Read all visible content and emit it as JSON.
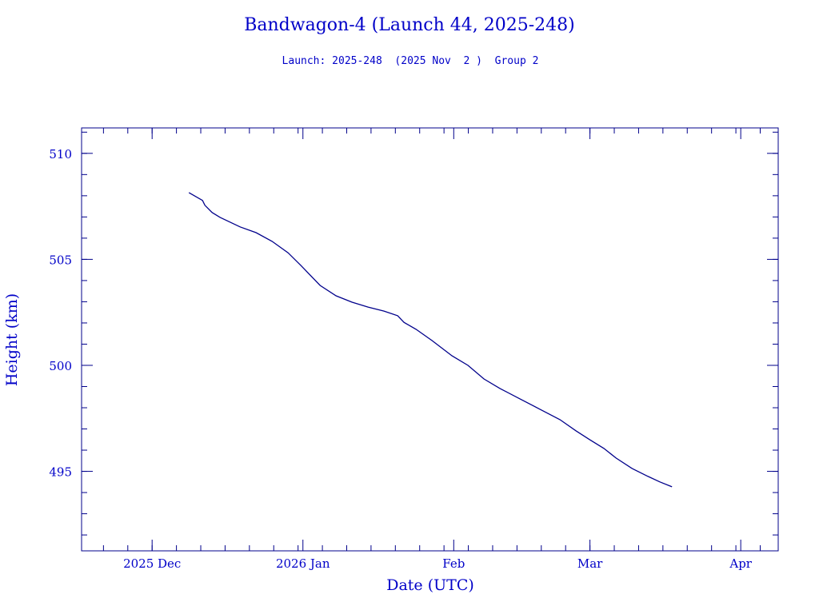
{
  "chart_data": {
    "type": "line",
    "title": "Bandwagon-4 (Launch 44, 2025-248)",
    "subtitle": "Launch: 2025-248  (2025 Nov  2 )  Group 2",
    "xlabel": "Date (UTC)",
    "ylabel": "Height (km)",
    "x_units": "days since 2025 Dec 1 (UTC)",
    "xlim": [
      -14.5,
      128.7
    ],
    "ylim": [
      491.25,
      511.2
    ],
    "x_ticks": [
      {
        "value": 0,
        "label": "2025 Dec"
      },
      {
        "value": 31,
        "label": "2026 Jan"
      },
      {
        "value": 62,
        "label": "Feb"
      },
      {
        "value": 90,
        "label": "Mar"
      },
      {
        "value": 121,
        "label": "Apr"
      }
    ],
    "x_minor_step": 5,
    "y_ticks": [
      {
        "value": 495,
        "label": "495"
      },
      {
        "value": 500,
        "label": "500"
      },
      {
        "value": 505,
        "label": "505"
      },
      {
        "value": 510,
        "label": "510"
      }
    ],
    "y_minor_step": 1,
    "grid": false,
    "series": [
      {
        "name": "Height",
        "color": "#00008b",
        "x": [
          7.56,
          10.36,
          10.85,
          12.33,
          13.97,
          18.08,
          21.37,
          24.66,
          27.95,
          30.58,
          34.52,
          37.81,
          41.1,
          44.39,
          47.67,
          50.47,
          51.78,
          54.25,
          57.54,
          61.65,
          64.93,
          68.22,
          71.51,
          75.62,
          79.73,
          83.84,
          87.13,
          89.92,
          92.88,
          95.35,
          98.64,
          101.93,
          104.39,
          106.86
        ],
        "y": [
          508.15,
          507.78,
          507.55,
          507.21,
          506.98,
          506.53,
          506.26,
          505.85,
          505.31,
          504.71,
          503.77,
          503.28,
          502.98,
          502.75,
          502.56,
          502.34,
          502.03,
          501.7,
          501.17,
          500.45,
          500.0,
          499.36,
          498.91,
          498.42,
          497.93,
          497.44,
          496.91,
          496.5,
          496.08,
          495.63,
          495.14,
          494.76,
          494.5,
          494.27
        ]
      }
    ],
    "colors": {
      "text": "#0000c8",
      "axis": "#00008b"
    }
  }
}
